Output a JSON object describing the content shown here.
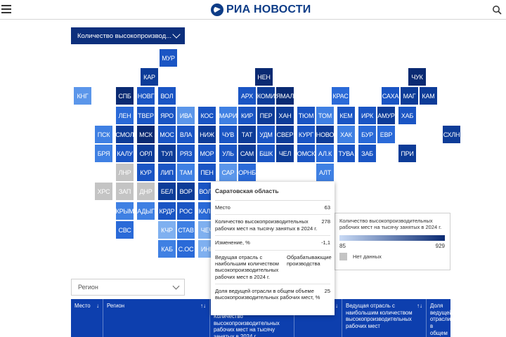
{
  "header": {
    "logo_text": "РИА НОВОСТИ"
  },
  "indicator": {
    "selected": "Количество высокопроизвод..."
  },
  "colors": {
    "c1": "#0a2a72",
    "c2": "#0d3c98",
    "c3": "#1a55c4",
    "c4": "#2a6ad8",
    "c5": "#3f80e3",
    "c6": "#5b96ea",
    "c7": "#7fb0f0",
    "c8": "#a6c8f5",
    "nodata": "#c4c4c4"
  },
  "tiles": [
    {
      "label": "МУР",
      "shade": "c3"
    },
    {
      "label": "КАР",
      "shade": "c2"
    },
    {
      "label": "НЕН",
      "shade": "c1"
    },
    {
      "label": "ЧУК",
      "shade": "c1"
    },
    {
      "label": "КНГ",
      "shade": "c6"
    },
    {
      "label": "СПБ",
      "shade": "c1"
    },
    {
      "label": "НОВГ",
      "shade": "c3"
    },
    {
      "label": "ВОЛ",
      "shade": "c3"
    },
    {
      "label": "АРХ",
      "shade": "c3"
    },
    {
      "label": "КОМИ",
      "shade": "c2"
    },
    {
      "label": "ЯМАЛ",
      "shade": "c1"
    },
    {
      "label": "КРАС",
      "shade": "c4"
    },
    {
      "label": "САХА",
      "shade": "c3"
    },
    {
      "label": "МАГ",
      "shade": "c2"
    },
    {
      "label": "КАМ",
      "shade": "c2"
    },
    {
      "label": "ЛЕН",
      "shade": "c4"
    },
    {
      "label": "ТВЕР",
      "shade": "c3"
    },
    {
      "label": "ЯРО",
      "shade": "c3"
    },
    {
      "label": "ИВА",
      "shade": "c6"
    },
    {
      "label": "КОС",
      "shade": "c3"
    },
    {
      "label": "МАРИ",
      "shade": "c5"
    },
    {
      "label": "КИР",
      "shade": "c3"
    },
    {
      "label": "ПЕР",
      "shade": "c2"
    },
    {
      "label": "ХАН",
      "shade": "c2"
    },
    {
      "label": "ТЮМ",
      "shade": "c3"
    },
    {
      "label": "ТОМ",
      "shade": "c5"
    },
    {
      "label": "КЕМ",
      "shade": "c3"
    },
    {
      "label": "ИРК",
      "shade": "c3"
    },
    {
      "label": "АМУР",
      "shade": "c2"
    },
    {
      "label": "ХАБ",
      "shade": "c3"
    },
    {
      "label": "ПСК",
      "shade": "c5"
    },
    {
      "label": "СМОЛ",
      "shade": "c2"
    },
    {
      "label": "МСК",
      "shade": "c1"
    },
    {
      "label": "МОС",
      "shade": "c3"
    },
    {
      "label": "ВЛА",
      "shade": "c3"
    },
    {
      "label": "НИЖ",
      "shade": "c2"
    },
    {
      "label": "ЧУВ",
      "shade": "c3"
    },
    {
      "label": "ТАТ",
      "shade": "c2"
    },
    {
      "label": "УДМ",
      "shade": "c3"
    },
    {
      "label": "СВЕР",
      "shade": "c2"
    },
    {
      "label": "КУРГ",
      "shade": "c3"
    },
    {
      "label": "НОВО",
      "shade": "c2"
    },
    {
      "label": "ХАК",
      "shade": "c5"
    },
    {
      "label": "БУР",
      "shade": "c4"
    },
    {
      "label": "ЕВР",
      "shade": "c4"
    },
    {
      "label": "СХЛН",
      "shade": "c2"
    },
    {
      "label": "БРЯ",
      "shade": "c5"
    },
    {
      "label": "КАЛУ",
      "shade": "c3"
    },
    {
      "label": "ОРЛ",
      "shade": "c2"
    },
    {
      "label": "ТУЛ",
      "shade": "c2"
    },
    {
      "label": "РЯЗ",
      "shade": "c3"
    },
    {
      "label": "МОР",
      "shade": "c3"
    },
    {
      "label": "УЛЬ",
      "shade": "c3"
    },
    {
      "label": "САМ",
      "shade": "c2"
    },
    {
      "label": "БШК",
      "shade": "c3"
    },
    {
      "label": "ЧЕЛ",
      "shade": "c2"
    },
    {
      "label": "ОМСК",
      "shade": "c3"
    },
    {
      "label": "АЛ.К",
      "shade": "c4"
    },
    {
      "label": "ТУВА",
      "shade": "c3"
    },
    {
      "label": "ЗАБ",
      "shade": "c3"
    },
    {
      "label": "ПРИ",
      "shade": "c2"
    },
    {
      "label": "ЛНР",
      "shade": "nodata"
    },
    {
      "label": "КУР",
      "shade": "c3"
    },
    {
      "label": "ЛИП",
      "shade": "c3"
    },
    {
      "label": "ТАМ",
      "shade": "c5"
    },
    {
      "label": "ПЕН",
      "shade": "c3"
    },
    {
      "label": "САР",
      "shade": "c6"
    },
    {
      "label": "ОРНБ",
      "shade": "c4"
    },
    {
      "label": "АЛТ",
      "shade": "c5"
    },
    {
      "label": "ХРС",
      "shade": "nodata"
    },
    {
      "label": "ЗАП",
      "shade": "nodata"
    },
    {
      "label": "ДНР",
      "shade": "nodata"
    },
    {
      "label": "БЕЛ",
      "shade": "c2"
    },
    {
      "label": "ВОР",
      "shade": "c2"
    },
    {
      "label": "ВОЛГ",
      "shade": "c3"
    },
    {
      "label": "КРЫМ",
      "shade": "c5"
    },
    {
      "label": "АДЫГ",
      "shade": "c5"
    },
    {
      "label": "КРДР",
      "shade": "c3"
    },
    {
      "label": "РОС",
      "shade": "c3"
    },
    {
      "label": "КАЛМ",
      "shade": "c4"
    },
    {
      "label": "СВС",
      "shade": "c4"
    },
    {
      "label": "КЧР",
      "shade": "c7"
    },
    {
      "label": "СТАВ",
      "shade": "c5"
    },
    {
      "label": "ЧЕЧ",
      "shade": "c7"
    },
    {
      "label": "КАБ",
      "shade": "c5"
    },
    {
      "label": "С.ОС",
      "shade": "c4"
    },
    {
      "label": "ИНГ",
      "shade": "c7"
    }
  ],
  "tooltip": {
    "title": "Саратовская область",
    "rows": [
      {
        "key": "Место",
        "value": "63"
      },
      {
        "key": "Количество высокопроизводительных рабочих мест на тысячу занятых в 2024 г.",
        "value": "278"
      },
      {
        "key": "Изменение, %",
        "value": "-1,1"
      },
      {
        "key": "Ведущая отрасль с наибольшим количеством высокопроизводительных рабочих мест в 2024 г.",
        "value": "Обрабатывающие производства"
      },
      {
        "key": "Доля ведущей отрасли в общем объеме высокопроизводительных рабочих мест, %",
        "value": "25"
      }
    ]
  },
  "legend": {
    "title": "Количество высокопроизводительных рабочих мест на тысячу занятых в 2024 г.",
    "min": "85",
    "max": "929",
    "nodata_label": "Нет данных"
  },
  "region_filter": {
    "placeholder": "Регион"
  },
  "table": {
    "columns": [
      {
        "label": "Место",
        "sort": "↓"
      },
      {
        "label": "Регион",
        "sort": "↑↓"
      },
      {
        "label": "Количество высокопроизводительных рабочих мест на тысячу занятых в 2024 г.",
        "sort": "↑↓"
      },
      {
        "label": "",
        "sort": "↑↓"
      },
      {
        "label": "Ведущая отрасль с наибольшим количеством высокопроизводительных рабочих мест",
        "sort": "↑↓"
      },
      {
        "label": "Доля ведущей отрасли в общем объеме",
        "sort": ""
      }
    ]
  }
}
